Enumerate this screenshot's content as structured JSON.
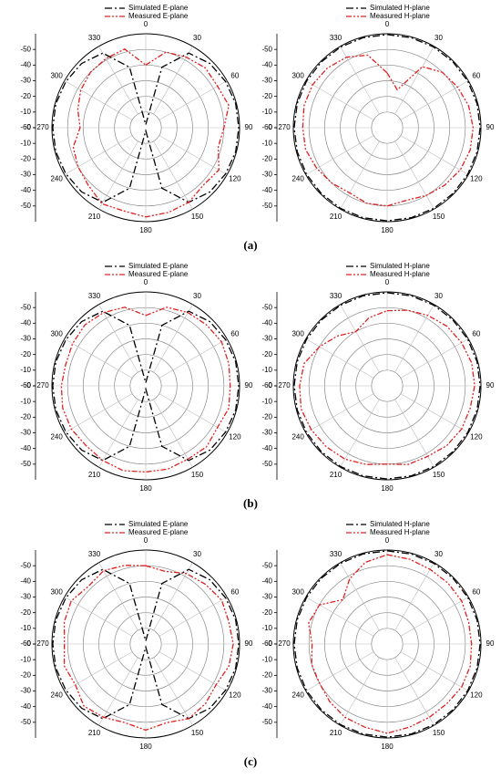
{
  "panel_labels": [
    "(a)",
    "(b)",
    "(c)"
  ],
  "chart_data": [
    {
      "type": "polar",
      "rlim": [
        -60,
        0
      ],
      "rticks": [
        0,
        -10,
        -20,
        -30,
        -40,
        -50,
        -60
      ],
      "angle_ticks": [
        0,
        30,
        60,
        90,
        120,
        150,
        180,
        210,
        240,
        270,
        300,
        330
      ],
      "legend": "top",
      "theta": [
        0,
        15,
        30,
        45,
        60,
        75,
        90,
        105,
        120,
        135,
        150,
        165,
        180,
        195,
        210,
        225,
        240,
        255,
        270,
        285,
        300,
        315,
        330,
        345
      ],
      "series": [
        {
          "name": "Simulated E-plane",
          "color": "#000000",
          "dash": "dash-dot",
          "values": [
            -58,
            -20,
            -5,
            -2,
            -1,
            -0.5,
            -0.5,
            -0.5,
            -1,
            -2,
            -5,
            -20,
            -58,
            -20,
            -5,
            -2,
            -1,
            -0.5,
            -0.5,
            -0.5,
            -1,
            -2,
            -5,
            -20
          ]
        },
        {
          "name": "Measured E-plane",
          "color": "#e02020",
          "dash": "dash-dot-dot",
          "values": [
            -20,
            -10,
            -8,
            -6,
            -7,
            -5,
            -10,
            -12,
            -6,
            -8,
            -5,
            -4,
            -3,
            -5,
            -4,
            -8,
            -10,
            -12,
            -18,
            -15,
            -12,
            -10,
            -9,
            -8
          ]
        }
      ]
    },
    {
      "type": "polar",
      "rlim": [
        -60,
        0
      ],
      "rticks": [
        0,
        -10,
        -20,
        -30,
        -40,
        -50,
        -60
      ],
      "angle_ticks": [
        0,
        30,
        60,
        90,
        120,
        150,
        180,
        210,
        240,
        270,
        300,
        330
      ],
      "legend": "top",
      "theta": [
        0,
        15,
        30,
        45,
        60,
        75,
        90,
        105,
        120,
        135,
        150,
        165,
        180,
        195,
        210,
        225,
        240,
        255,
        270,
        285,
        300,
        315,
        330,
        345
      ],
      "series": [
        {
          "name": "Simulated H-plane",
          "color": "#000000",
          "dash": "dash-dot",
          "values": [
            -0.5,
            -0.5,
            -0.5,
            -0.5,
            -0.5,
            -0.5,
            -0.5,
            -0.5,
            -0.5,
            -0.5,
            -0.5,
            -0.5,
            -0.5,
            -0.5,
            -0.5,
            -0.5,
            -0.5,
            -0.5,
            -0.5,
            -0.5,
            -0.5,
            -0.5,
            -0.5,
            -0.5
          ]
        },
        {
          "name": "Measured H-plane",
          "color": "#e02020",
          "dash": "dash-dot-dot",
          "values": [
            -25,
            -35,
            -15,
            -10,
            -8,
            -6,
            -5,
            -5,
            -6,
            -8,
            -10,
            -12,
            -10,
            -10,
            -12,
            -10,
            -8,
            -6,
            -6,
            -5,
            -5,
            -6,
            -8,
            -12
          ]
        }
      ]
    },
    {
      "type": "polar",
      "rlim": [
        -60,
        0
      ],
      "rticks": [
        0,
        -10,
        -20,
        -30,
        -40,
        -50,
        -60
      ],
      "angle_ticks": [
        0,
        30,
        60,
        90,
        120,
        150,
        180,
        210,
        240,
        270,
        300,
        330
      ],
      "legend": "top",
      "theta": [
        0,
        15,
        30,
        45,
        60,
        75,
        90,
        105,
        120,
        135,
        150,
        165,
        180,
        195,
        210,
        225,
        240,
        255,
        270,
        285,
        300,
        315,
        330,
        345
      ],
      "series": [
        {
          "name": "Simulated E-plane",
          "color": "#000000",
          "dash": "dash-dot",
          "values": [
            -58,
            -20,
            -5,
            -2,
            -1,
            -0.5,
            -0.5,
            -0.5,
            -1,
            -2,
            -5,
            -20,
            -58,
            -20,
            -5,
            -2,
            -1,
            -0.5,
            -0.5,
            -0.5,
            -1,
            -2,
            -5,
            -20
          ]
        },
        {
          "name": "Measured E-plane",
          "color": "#e02020",
          "dash": "dash-dot-dot",
          "values": [
            -15,
            -8,
            -6,
            -5,
            -4,
            -5,
            -6,
            -5,
            -7,
            -5,
            -6,
            -5,
            -5,
            -4,
            -5,
            -6,
            -5,
            -5,
            -6,
            -7,
            -6,
            -5,
            -6,
            -8
          ]
        }
      ]
    },
    {
      "type": "polar",
      "rlim": [
        -60,
        0
      ],
      "rticks": [
        0,
        -10,
        -20,
        -30,
        -40,
        -50,
        -60
      ],
      "angle_ticks": [
        0,
        30,
        60,
        90,
        120,
        150,
        180,
        210,
        240,
        270,
        300,
        330
      ],
      "legend": "top",
      "theta": [
        0,
        15,
        30,
        45,
        60,
        75,
        90,
        105,
        120,
        135,
        150,
        165,
        180,
        195,
        210,
        225,
        240,
        255,
        270,
        285,
        300,
        315,
        330,
        345
      ],
      "series": [
        {
          "name": "Simulated H-plane",
          "color": "#000000",
          "dash": "dash-dot",
          "values": [
            -0.5,
            -0.5,
            -0.5,
            -0.5,
            -0.5,
            -0.5,
            -0.5,
            -0.5,
            -0.5,
            -0.5,
            -0.5,
            -0.5,
            -0.5,
            -0.5,
            -0.5,
            -0.5,
            -0.5,
            -0.5,
            -0.5,
            -0.5,
            -0.5,
            -0.5,
            -0.5,
            -0.5
          ]
        },
        {
          "name": "Measured H-plane",
          "color": "#e02020",
          "dash": "dash-dot-dot",
          "values": [
            -12,
            -10,
            -8,
            -6,
            -5,
            -4,
            -4,
            -5,
            -5,
            -6,
            -8,
            -8,
            -10,
            -8,
            -6,
            -5,
            -4,
            -3,
            -4,
            -5,
            -10,
            -15,
            -20,
            -15
          ]
        }
      ]
    },
    {
      "type": "polar",
      "rlim": [
        -60,
        0
      ],
      "rticks": [
        0,
        -10,
        -20,
        -30,
        -40,
        -50,
        -60
      ],
      "angle_ticks": [
        0,
        30,
        60,
        90,
        120,
        150,
        180,
        210,
        240,
        270,
        300,
        330
      ],
      "legend": "top",
      "theta": [
        0,
        15,
        30,
        45,
        60,
        75,
        90,
        105,
        120,
        135,
        150,
        165,
        180,
        195,
        210,
        225,
        240,
        255,
        270,
        285,
        300,
        315,
        330,
        345
      ],
      "series": [
        {
          "name": "Simulated E-plane",
          "color": "#000000",
          "dash": "dash-dot",
          "values": [
            -58,
            -20,
            -5,
            -2,
            -1,
            -0.5,
            -0.5,
            -0.5,
            -1,
            -2,
            -5,
            -20,
            -58,
            -20,
            -5,
            -2,
            -1,
            -0.5,
            -0.5,
            -0.5,
            -1,
            -2,
            -5,
            -20
          ]
        },
        {
          "name": "Measured E-plane",
          "color": "#e02020",
          "dash": "dash-dot-dot",
          "values": [
            -10,
            -12,
            -8,
            -6,
            -4,
            -5,
            -4,
            -5,
            -8,
            -6,
            -5,
            -8,
            -5,
            -8,
            -6,
            -4,
            -8,
            -6,
            -8,
            -6,
            -5,
            -8,
            -6,
            -8
          ]
        }
      ]
    },
    {
      "type": "polar",
      "rlim": [
        -60,
        0
      ],
      "rticks": [
        0,
        -10,
        -20,
        -30,
        -40,
        -50,
        -60
      ],
      "angle_ticks": [
        0,
        30,
        60,
        90,
        120,
        150,
        180,
        210,
        240,
        270,
        300,
        330
      ],
      "legend": "top",
      "theta": [
        0,
        15,
        30,
        45,
        60,
        75,
        90,
        105,
        120,
        135,
        150,
        165,
        180,
        195,
        210,
        225,
        240,
        255,
        270,
        285,
        300,
        315,
        330,
        345
      ],
      "series": [
        {
          "name": "Simulated H-plane",
          "color": "#000000",
          "dash": "dash-dot",
          "values": [
            -0.5,
            -0.5,
            -0.5,
            -0.5,
            -0.5,
            -0.5,
            -0.5,
            -0.5,
            -0.5,
            -0.5,
            -0.5,
            -0.5,
            -0.5,
            -0.5,
            -0.5,
            -0.5,
            -0.5,
            -0.5,
            -0.5,
            -0.5,
            -0.5,
            -0.5,
            -0.5,
            -0.5
          ]
        },
        {
          "name": "Measured H-plane",
          "color": "#e02020",
          "dash": "dash-dot-dot",
          "values": [
            -3,
            -4,
            -5,
            -5,
            -5,
            -6,
            -6,
            -5,
            -5,
            -6,
            -6,
            -5,
            -3,
            -5,
            -6,
            -8,
            -10,
            -10,
            -12,
            -8,
            -10,
            -20,
            -12,
            -6
          ]
        }
      ]
    }
  ]
}
